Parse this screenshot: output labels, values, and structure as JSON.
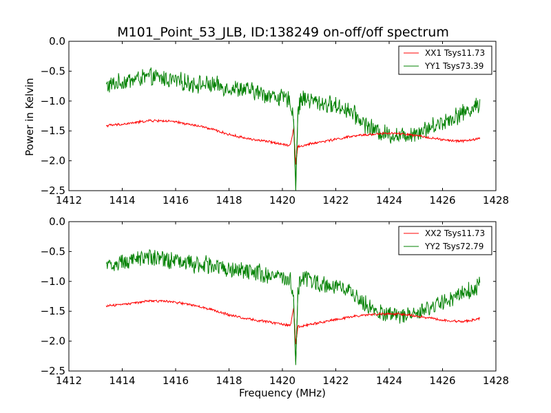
{
  "title": "M101_Point_53_JLB, ID:138249 on-off/off spectrum",
  "chart_data": [
    {
      "type": "line",
      "xlabel": "",
      "ylabel": "Power in Kelvin",
      "xlim": [
        1412,
        1428
      ],
      "ylim": [
        -2.5,
        0.0
      ],
      "xticks": [
        1412,
        1414,
        1416,
        1418,
        1420,
        1422,
        1424,
        1426,
        1428
      ],
      "yticks": [
        0.0,
        -0.5,
        -1.0,
        -1.5,
        -2.0,
        -2.5
      ],
      "xtick_labels": [
        "1412",
        "1414",
        "1416",
        "1418",
        "1420",
        "1422",
        "1424",
        "1426",
        "1428"
      ],
      "ytick_labels": [
        "0.0",
        "−0.5",
        "−1.0",
        "−1.5",
        "−2.0",
        "−2.5"
      ],
      "grid": false,
      "legend_position": "top-right",
      "series": [
        {
          "name": "XX1 Tsys11.73",
          "color": "#ff0000",
          "noise": 0.018,
          "x": [
            1413.4,
            1414.0,
            1414.5,
            1415.0,
            1415.5,
            1416.0,
            1416.5,
            1417.0,
            1417.5,
            1418.0,
            1418.5,
            1419.0,
            1419.5,
            1420.0,
            1420.3,
            1420.42,
            1420.5,
            1420.58,
            1420.7,
            1421.0,
            1421.5,
            1422.0,
            1422.5,
            1423.0,
            1423.5,
            1424.0,
            1424.5,
            1425.0,
            1425.5,
            1426.0,
            1426.5,
            1427.0,
            1427.4
          ],
          "y": [
            -1.41,
            -1.39,
            -1.36,
            -1.33,
            -1.33,
            -1.35,
            -1.39,
            -1.43,
            -1.49,
            -1.56,
            -1.61,
            -1.65,
            -1.68,
            -1.72,
            -1.74,
            -1.45,
            -2.05,
            -1.75,
            -1.76,
            -1.72,
            -1.68,
            -1.64,
            -1.6,
            -1.57,
            -1.55,
            -1.54,
            -1.55,
            -1.58,
            -1.61,
            -1.65,
            -1.67,
            -1.66,
            -1.62
          ]
        },
        {
          "name": "YY1 Tsys73.39",
          "color": "#008000",
          "noise": 0.13,
          "x": [
            1413.4,
            1414.0,
            1414.5,
            1415.0,
            1415.5,
            1416.0,
            1416.5,
            1417.0,
            1417.5,
            1418.0,
            1418.5,
            1419.0,
            1419.5,
            1420.0,
            1420.3,
            1420.42,
            1420.5,
            1420.58,
            1420.7,
            1421.0,
            1421.5,
            1422.0,
            1422.5,
            1423.0,
            1423.5,
            1424.0,
            1424.5,
            1425.0,
            1425.5,
            1426.0,
            1426.5,
            1427.0,
            1427.4
          ],
          "y": [
            -0.75,
            -0.68,
            -0.63,
            -0.6,
            -0.62,
            -0.66,
            -0.7,
            -0.72,
            -0.74,
            -0.78,
            -0.8,
            -0.85,
            -0.9,
            -0.95,
            -1.0,
            -1.3,
            -2.42,
            -1.2,
            -0.95,
            -0.98,
            -1.04,
            -1.08,
            -1.15,
            -1.35,
            -1.5,
            -1.56,
            -1.58,
            -1.52,
            -1.45,
            -1.35,
            -1.25,
            -1.15,
            -1.05
          ]
        }
      ]
    },
    {
      "type": "line",
      "xlabel": "Frequency (MHz)",
      "ylabel": "",
      "xlim": [
        1412,
        1428
      ],
      "ylim": [
        -2.5,
        0.0
      ],
      "xticks": [
        1412,
        1414,
        1416,
        1418,
        1420,
        1422,
        1424,
        1426,
        1428
      ],
      "yticks": [
        0.0,
        -0.5,
        -1.0,
        -1.5,
        -2.0,
        -2.5
      ],
      "xtick_labels": [
        "1412",
        "1414",
        "1416",
        "1418",
        "1420",
        "1422",
        "1424",
        "1426",
        "1428"
      ],
      "ytick_labels": [
        "0.0",
        "−0.5",
        "−1.0",
        "−1.5",
        "−2.0",
        "−2.5"
      ],
      "grid": false,
      "legend_position": "top-right",
      "series": [
        {
          "name": "XX2 Tsys11.73",
          "color": "#ff0000",
          "noise": 0.018,
          "x": [
            1413.4,
            1414.0,
            1414.5,
            1415.0,
            1415.5,
            1416.0,
            1416.5,
            1417.0,
            1417.5,
            1418.0,
            1418.5,
            1419.0,
            1419.5,
            1420.0,
            1420.3,
            1420.42,
            1420.5,
            1420.58,
            1420.7,
            1421.0,
            1421.5,
            1422.0,
            1422.5,
            1423.0,
            1423.5,
            1424.0,
            1424.5,
            1425.0,
            1425.5,
            1426.0,
            1426.5,
            1427.0,
            1427.4
          ],
          "y": [
            -1.41,
            -1.39,
            -1.36,
            -1.33,
            -1.33,
            -1.35,
            -1.39,
            -1.43,
            -1.49,
            -1.56,
            -1.61,
            -1.65,
            -1.68,
            -1.72,
            -1.74,
            -1.45,
            -2.05,
            -1.75,
            -1.76,
            -1.72,
            -1.68,
            -1.64,
            -1.6,
            -1.57,
            -1.55,
            -1.54,
            -1.55,
            -1.58,
            -1.61,
            -1.65,
            -1.67,
            -1.66,
            -1.62
          ]
        },
        {
          "name": "YY2 Tsys72.79",
          "color": "#008000",
          "noise": 0.13,
          "x": [
            1413.4,
            1414.0,
            1414.5,
            1415.0,
            1415.5,
            1416.0,
            1416.5,
            1417.0,
            1417.5,
            1418.0,
            1418.5,
            1419.0,
            1419.5,
            1420.0,
            1420.3,
            1420.42,
            1420.5,
            1420.58,
            1420.7,
            1421.0,
            1421.5,
            1422.0,
            1422.5,
            1423.0,
            1423.5,
            1424.0,
            1424.5,
            1425.0,
            1425.5,
            1426.0,
            1426.5,
            1427.0,
            1427.4
          ],
          "y": [
            -0.75,
            -0.68,
            -0.63,
            -0.6,
            -0.62,
            -0.66,
            -0.7,
            -0.72,
            -0.74,
            -0.78,
            -0.8,
            -0.85,
            -0.9,
            -0.95,
            -1.0,
            -1.3,
            -2.4,
            -1.2,
            -0.95,
            -0.98,
            -1.04,
            -1.08,
            -1.15,
            -1.35,
            -1.5,
            -1.56,
            -1.58,
            -1.52,
            -1.45,
            -1.35,
            -1.25,
            -1.15,
            -1.05
          ]
        }
      ]
    }
  ]
}
